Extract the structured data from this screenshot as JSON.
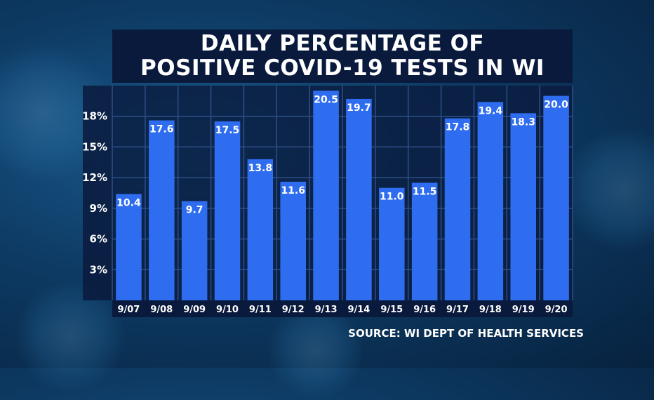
{
  "title": {
    "line1": "DAILY PERCENTAGE OF",
    "line2": "POSITIVE COVID-19 TESTS IN WI"
  },
  "source": "SOURCE: WI DEPT OF HEALTH SERVICES",
  "colors": {
    "bar": "#2f6df0",
    "plot_bg": "#0a1a3d",
    "grid": "#2e4f86",
    "text": "#ffffff"
  },
  "chart_data": {
    "type": "bar",
    "categories": [
      "9/07",
      "9/08",
      "9/09",
      "9/10",
      "9/11",
      "9/12",
      "9/13",
      "9/14",
      "9/15",
      "9/16",
      "9/17",
      "9/18",
      "9/19",
      "9/20"
    ],
    "values": [
      10.4,
      17.6,
      9.7,
      17.5,
      13.8,
      11.6,
      20.5,
      19.7,
      11.0,
      11.5,
      17.8,
      19.4,
      18.3,
      20.0
    ],
    "value_labels": [
      "10.4",
      "17.6",
      "9.7",
      "17.5",
      "13.8",
      "11.6",
      "20.5",
      "19.7",
      "11.0",
      "11.5",
      "17.8",
      "19.4",
      "18.3",
      "20.0"
    ],
    "yticks": [
      3,
      6,
      9,
      12,
      15,
      18
    ],
    "ytick_labels": [
      "3%",
      "6%",
      "9%",
      "12%",
      "15%",
      "18%"
    ],
    "ylim": [
      0,
      21
    ],
    "grid": true
  }
}
